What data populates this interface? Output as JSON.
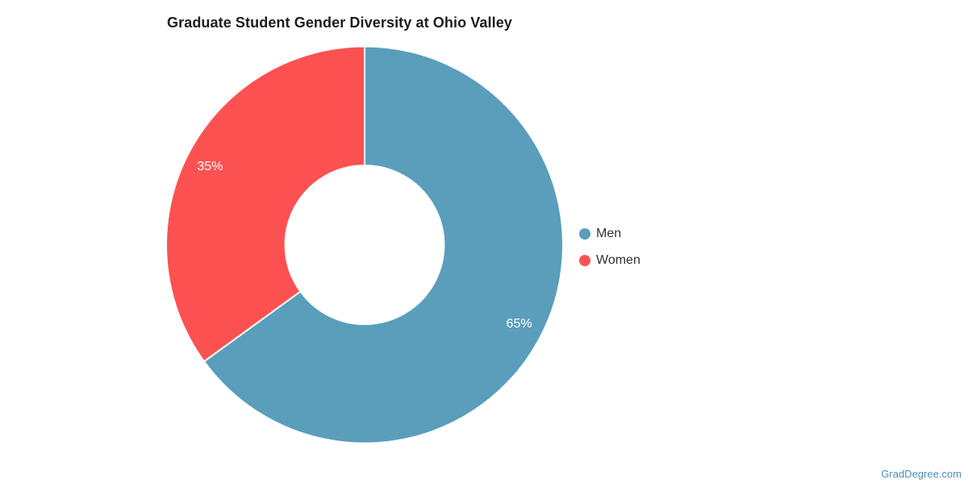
{
  "chart_data": {
    "type": "pie",
    "title": "Graduate Student Gender Diversity at Ohio Valley",
    "donut": true,
    "inner_radius_ratio": 0.4,
    "start_angle_deg": 0,
    "legend_position": "right",
    "grid": false,
    "segments": [
      {
        "label": "Men",
        "value": 65,
        "display": "65%",
        "color": "#5A9EBC"
      },
      {
        "label": "Women",
        "value": 35,
        "display": "35%",
        "color": "#FC5151"
      }
    ]
  },
  "watermark": {
    "text": "GradDegree.com",
    "color": "#4A90B5"
  }
}
